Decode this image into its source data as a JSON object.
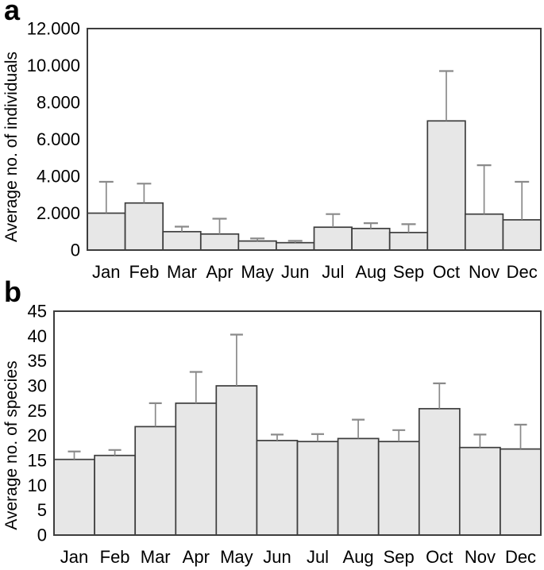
{
  "figure": {
    "panel_a_label": "a",
    "panel_b_label": "b",
    "background": "#ffffff"
  },
  "colors": {
    "bar_fill": "#e7e7e7",
    "bar_stroke": "#3d3d3d",
    "error_bar": "#8a8a8a",
    "axis": "#3d3d3d",
    "text": "#000000"
  },
  "chart_data": [
    {
      "type": "bar",
      "panel": "a",
      "title": "",
      "xlabel": "",
      "ylabel": "Average no. of individuals",
      "categories": [
        "Jan",
        "Feb",
        "Mar",
        "Apr",
        "May",
        "Jun",
        "Jul",
        "Aug",
        "Sep",
        "Oct",
        "Nov",
        "Dec"
      ],
      "values": [
        2000,
        2550,
        1000,
        870,
        490,
        400,
        1240,
        1170,
        950,
        7000,
        1950,
        1640
      ],
      "upper_errors": [
        1700,
        1050,
        270,
        830,
        140,
        100,
        710,
        290,
        450,
        2700,
        2650,
        2060
      ],
      "ylim": [
        0,
        12000
      ],
      "ytick_step": 2000,
      "ytick_labels": [
        "0",
        "2.000",
        "4.000",
        "6.000",
        "8.000",
        "10.000",
        "12.000"
      ],
      "grid": false,
      "legend": null
    },
    {
      "type": "bar",
      "panel": "b",
      "title": "",
      "xlabel": "",
      "ylabel": "Average no. of species",
      "categories": [
        "Jan",
        "Feb",
        "Mar",
        "Apr",
        "May",
        "Jun",
        "Jul",
        "Aug",
        "Sep",
        "Oct",
        "Nov",
        "Dec"
      ],
      "values": [
        15.2,
        16.0,
        21.8,
        26.5,
        30.0,
        19.0,
        18.8,
        19.4,
        18.8,
        25.4,
        17.6,
        17.3
      ],
      "upper_errors": [
        1.6,
        1.1,
        4.7,
        6.3,
        10.3,
        1.2,
        1.5,
        3.8,
        2.3,
        5.1,
        2.6,
        4.9
      ],
      "ylim": [
        0,
        45
      ],
      "ytick_step": 5,
      "ytick_labels": [
        "0",
        "5",
        "10",
        "15",
        "20",
        "25",
        "30",
        "35",
        "40",
        "45"
      ],
      "grid": false,
      "legend": null
    }
  ]
}
